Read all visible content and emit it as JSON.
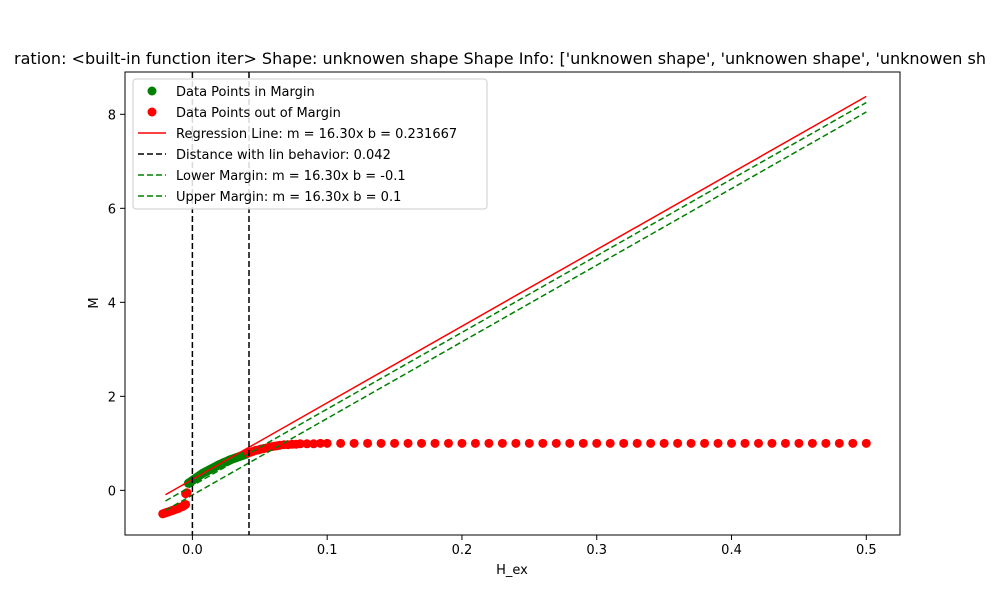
{
  "chart_data": {
    "type": "scatter",
    "title": "ration: <built-in function iter> Shape: unknowen shape Shape Info: ['unknowen shape', 'unknowen shape', 'unknowen sh",
    "xlabel": "H_ex",
    "ylabel": "M",
    "xlim": [
      -0.05,
      0.525
    ],
    "ylim": [
      -0.95,
      8.9
    ],
    "xticks": [
      "0.0",
      "0.1",
      "0.2",
      "0.3",
      "0.4",
      "0.5"
    ],
    "xtick_values": [
      0.0,
      0.1,
      0.2,
      0.3,
      0.4,
      0.5
    ],
    "yticks": [
      "0",
      "2",
      "4",
      "6",
      "8"
    ],
    "ytick_values": [
      0,
      2,
      4,
      6,
      8
    ],
    "grid": false,
    "legend_position": "top-left",
    "regression": {
      "slope": 16.3,
      "intercept": 0.231667,
      "x_range": [
        -0.02,
        0.5
      ],
      "color": "#ff0000"
    },
    "margins": [
      {
        "slope": 16.3,
        "intercept": -0.1,
        "x_range": [
          -0.02,
          0.5
        ],
        "color": "#008000"
      },
      {
        "slope": 16.3,
        "intercept": 0.1,
        "x_range": [
          -0.02,
          0.5
        ],
        "color": "#008000"
      }
    ],
    "vlines": [
      0.0,
      0.042
    ],
    "colors": {
      "in_margin": "#008000",
      "out_margin": "#ff0000",
      "regression": "#ff0000",
      "margin": "#008000",
      "vline": "#000000"
    },
    "series": [
      {
        "name": "Data Points in Margin",
        "color": "#008000",
        "x": [
          -0.003,
          -0.002,
          -0.001,
          0.0,
          0.001,
          0.002,
          0.003,
          0.004,
          0.005,
          0.006,
          0.007,
          0.008,
          0.009,
          0.01,
          0.011,
          0.012,
          0.013,
          0.014,
          0.015,
          0.016,
          0.017,
          0.018,
          0.019,
          0.02,
          0.021,
          0.022,
          0.023,
          0.024,
          0.025,
          0.026,
          0.027,
          0.028,
          0.029,
          0.03,
          0.031,
          0.032,
          0.033,
          0.034,
          0.035,
          0.036,
          0.037,
          0.038,
          0.039,
          0.04
        ],
        "y": [
          0.15,
          0.17,
          0.19,
          0.21,
          0.23,
          0.25,
          0.27,
          0.29,
          0.31,
          0.33,
          0.35,
          0.37,
          0.38,
          0.4,
          0.41,
          0.43,
          0.44,
          0.46,
          0.47,
          0.49,
          0.5,
          0.52,
          0.53,
          0.55,
          0.56,
          0.57,
          0.59,
          0.6,
          0.61,
          0.62,
          0.64,
          0.65,
          0.66,
          0.67,
          0.68,
          0.69,
          0.7,
          0.71,
          0.72,
          0.73,
          0.74,
          0.75,
          0.76,
          0.77
        ]
      },
      {
        "name": "Data Points out of Margin",
        "color": "#ff0000",
        "x": [
          -0.022,
          -0.021,
          -0.02,
          -0.019,
          -0.018,
          -0.017,
          -0.016,
          -0.015,
          -0.014,
          -0.013,
          -0.012,
          -0.011,
          -0.01,
          -0.009,
          -0.008,
          -0.007,
          -0.006,
          -0.005,
          -0.005,
          -0.004,
          0.041,
          0.043,
          0.045,
          0.047,
          0.049,
          0.051,
          0.053,
          0.055,
          0.057,
          0.059,
          0.061,
          0.063,
          0.065,
          0.068,
          0.071,
          0.074,
          0.077,
          0.08,
          0.085,
          0.09,
          0.095,
          0.1,
          0.11,
          0.12,
          0.13,
          0.14,
          0.15,
          0.16,
          0.17,
          0.18,
          0.19,
          0.2,
          0.21,
          0.22,
          0.23,
          0.24,
          0.25,
          0.26,
          0.27,
          0.28,
          0.29,
          0.3,
          0.31,
          0.32,
          0.33,
          0.34,
          0.35,
          0.36,
          0.37,
          0.38,
          0.39,
          0.4,
          0.41,
          0.42,
          0.43,
          0.44,
          0.45,
          0.46,
          0.47,
          0.48,
          0.49,
          0.5
        ],
        "y": [
          -0.5,
          -0.49,
          -0.48,
          -0.47,
          -0.46,
          -0.45,
          -0.44,
          -0.43,
          -0.42,
          -0.41,
          -0.4,
          -0.39,
          -0.38,
          -0.36,
          -0.35,
          -0.34,
          -0.32,
          -0.3,
          -0.07,
          -0.05,
          0.79,
          0.81,
          0.83,
          0.85,
          0.86,
          0.88,
          0.89,
          0.9,
          0.92,
          0.93,
          0.94,
          0.95,
          0.96,
          0.97,
          0.97,
          0.98,
          0.98,
          0.99,
          0.99,
          0.99,
          1.0,
          1.0,
          1.0,
          1.0,
          1.0,
          1.0,
          1.0,
          1.0,
          1.0,
          1.0,
          1.0,
          1.0,
          1.0,
          1.0,
          1.0,
          1.0,
          1.0,
          1.0,
          1.0,
          1.0,
          1.0,
          1.0,
          1.0,
          1.0,
          1.0,
          1.0,
          1.0,
          1.0,
          1.0,
          1.0,
          1.0,
          1.0,
          1.0,
          1.0,
          1.0,
          1.0,
          1.0,
          1.0,
          1.0,
          1.0,
          1.0,
          1.0
        ]
      }
    ],
    "legend": [
      {
        "label": "Data Points in Margin",
        "kind": "marker",
        "color": "#008000"
      },
      {
        "label": "Data Points out of Margin",
        "kind": "marker",
        "color": "#ff0000"
      },
      {
        "label": "Regression Line: m = 16.30x b = 0.231667",
        "kind": "line",
        "color": "#ff0000",
        "dash": "solid"
      },
      {
        "label": "Distance with lin behavior: 0.042",
        "kind": "line",
        "color": "#000000",
        "dash": "dashed"
      },
      {
        "label": "Lower Margin: m = 16.30x b = -0.1",
        "kind": "line",
        "color": "#008000",
        "dash": "dashed"
      },
      {
        "label": "Upper Margin: m = 16.30x b = 0.1",
        "kind": "line",
        "color": "#008000",
        "dash": "dashed"
      }
    ]
  }
}
